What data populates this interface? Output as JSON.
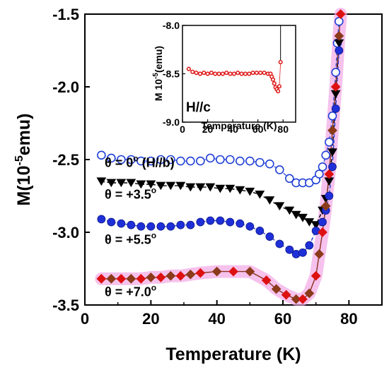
{
  "chart_data": [
    {
      "type": "line",
      "xlabel": "Temperature (K)",
      "ylabel_parts": {
        "base": "M(10",
        "exp": "-5",
        "unit": "emu)"
      },
      "xlim": [
        0,
        90
      ],
      "ylim": [
        -3.5,
        -1.5
      ],
      "xticks": [
        0,
        20,
        40,
        60,
        80
      ],
      "yticks": [
        -3.5,
        -3.0,
        -2.5,
        -2.0,
        -1.5
      ],
      "xtick_labels": [
        "0",
        "20",
        "40",
        "60",
        "80"
      ],
      "ytick_labels": [
        "-3.5",
        "-3.0",
        "-2.5",
        "-2.0",
        "-1.5"
      ],
      "annotations": [
        {
          "id": "a0",
          "base": "θ = 0",
          "sup": "o",
          "tail": " (H//b)",
          "x": 6,
          "y": -2.55
        },
        {
          "id": "a1",
          "base": "θ = +3.5",
          "sup": "o",
          "tail": "",
          "x": 6,
          "y": -2.77
        },
        {
          "id": "a2",
          "base": "θ = +5.5",
          "sup": "o",
          "tail": "",
          "x": 6,
          "y": -3.08
        },
        {
          "id": "a3",
          "base": "θ = +7.0",
          "sup": "o",
          "tail": "",
          "x": 6,
          "y": -3.44
        }
      ],
      "series": [
        {
          "id": "s0",
          "marker": "circle-open",
          "color": "#1f3fd6",
          "line": "#3a55e0",
          "glow": false,
          "x": [
            5,
            8,
            11,
            14,
            17,
            20,
            23,
            26,
            29,
            32,
            35,
            38,
            41,
            44,
            47,
            50,
            53,
            56,
            59,
            62,
            64,
            66,
            68,
            70,
            71,
            72,
            73,
            74,
            75,
            76,
            76.5,
            77
          ],
          "y": [
            -2.47,
            -2.49,
            -2.5,
            -2.5,
            -2.51,
            -2.51,
            -2.5,
            -2.5,
            -2.51,
            -2.51,
            -2.51,
            -2.49,
            -2.5,
            -2.5,
            -2.51,
            -2.51,
            -2.52,
            -2.53,
            -2.57,
            -2.63,
            -2.66,
            -2.66,
            -2.66,
            -2.64,
            -2.6,
            -2.55,
            -2.47,
            -2.38,
            -2.2,
            -1.9,
            -1.7,
            -1.55
          ]
        },
        {
          "id": "s1",
          "marker": "triangle-down",
          "color": "#000000",
          "line": "#000000",
          "glow": false,
          "x": [
            5,
            8,
            11,
            14,
            17,
            20,
            23,
            26,
            29,
            32,
            35,
            38,
            41,
            44,
            47,
            50,
            53,
            56,
            59,
            62,
            64,
            66,
            68,
            70,
            72,
            73,
            74,
            75,
            76,
            77
          ],
          "y": [
            -2.65,
            -2.66,
            -2.66,
            -2.66,
            -2.67,
            -2.67,
            -2.68,
            -2.68,
            -2.68,
            -2.69,
            -2.69,
            -2.69,
            -2.7,
            -2.7,
            -2.71,
            -2.72,
            -2.74,
            -2.78,
            -2.82,
            -2.85,
            -2.88,
            -2.9,
            -2.93,
            -2.95,
            -2.85,
            -2.77,
            -2.65,
            -2.45,
            -2.05,
            -1.7
          ]
        },
        {
          "id": "s2",
          "marker": "circle-filled",
          "color": "#1f2fd8",
          "line": "#2a3ecf",
          "glow": false,
          "x": [
            5,
            8,
            11,
            14,
            17,
            20,
            23,
            26,
            29,
            32,
            35,
            38,
            41,
            44,
            47,
            50,
            53,
            56,
            59,
            62,
            64,
            66,
            68,
            70,
            72,
            73,
            74,
            75,
            76,
            77
          ],
          "y": [
            -2.91,
            -2.93,
            -2.94,
            -2.95,
            -2.96,
            -2.96,
            -2.96,
            -2.96,
            -2.95,
            -2.95,
            -2.93,
            -2.92,
            -2.92,
            -2.93,
            -2.94,
            -2.96,
            -2.99,
            -3.03,
            -3.08,
            -3.12,
            -3.15,
            -3.14,
            -3.09,
            -2.99,
            -2.93,
            -2.85,
            -2.75,
            -2.55,
            -2.15,
            -1.75
          ]
        },
        {
          "id": "s3",
          "marker": "diamond",
          "color": "#dd1111",
          "color_alt": "#8b3a1a",
          "line": "#8a3320",
          "glow": true,
          "x": [
            5,
            8,
            11,
            14,
            17,
            20,
            23,
            26,
            29,
            32,
            35,
            40,
            45,
            50,
            55,
            58,
            61,
            64,
            66,
            68,
            70,
            71,
            72,
            73,
            74,
            75,
            76,
            77,
            77.5
          ],
          "y": [
            -3.32,
            -3.32,
            -3.32,
            -3.32,
            -3.32,
            -3.31,
            -3.31,
            -3.3,
            -3.3,
            -3.29,
            -3.28,
            -3.27,
            -3.27,
            -3.27,
            -3.33,
            -3.39,
            -3.43,
            -3.46,
            -3.46,
            -3.42,
            -3.3,
            -3.15,
            -3.0,
            -2.82,
            -2.6,
            -2.3,
            -2.0,
            -1.65,
            -1.5
          ]
        }
      ]
    },
    {
      "type": "scatter",
      "xlabel": "Temperature (K)",
      "ylabel": "M 10-5(emu)",
      "ylabel_parts": {
        "base": "M 10",
        "exp": "-5",
        "unit": "(emu)"
      },
      "annotation": "H//c",
      "xlim": [
        0,
        90
      ],
      "ylim": [
        -9.0,
        -8.0
      ],
      "xticks": [
        0,
        20,
        40,
        60,
        80
      ],
      "yticks": [
        -9.0,
        -8.5,
        -8.0
      ],
      "xtick_labels": [
        "0",
        "20",
        "40",
        "60",
        "80"
      ],
      "ytick_labels": [
        "-9.0",
        "-8.5",
        "-8.0"
      ],
      "series": [
        {
          "id": "inset",
          "marker": "circle-open",
          "color": "#e02020",
          "x": [
            5,
            8,
            11,
            14,
            17,
            20,
            23,
            26,
            29,
            32,
            35,
            38,
            41,
            44,
            47,
            50,
            53,
            56,
            59,
            62,
            65,
            68,
            70,
            71,
            72,
            73,
            74,
            75,
            76,
            77,
            78
          ],
          "y": [
            -8.45,
            -8.48,
            -8.49,
            -8.5,
            -8.49,
            -8.5,
            -8.49,
            -8.5,
            -8.5,
            -8.5,
            -8.49,
            -8.5,
            -8.5,
            -8.49,
            -8.5,
            -8.5,
            -8.5,
            -8.49,
            -8.49,
            -8.49,
            -8.49,
            -8.5,
            -8.5,
            -8.53,
            -8.56,
            -8.6,
            -8.64,
            -8.66,
            -8.68,
            -8.63,
            -8.38
          ]
        }
      ]
    }
  ]
}
